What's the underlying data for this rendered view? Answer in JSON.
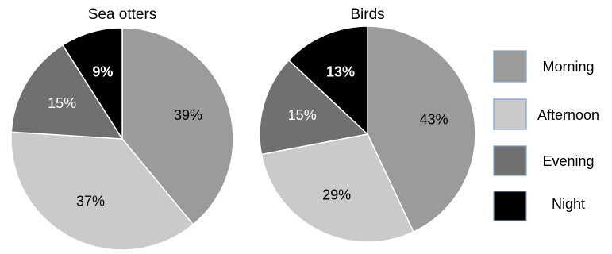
{
  "chart_data": [
    {
      "type": "pie",
      "title": "Sea otters",
      "categories": [
        "Morning",
        "Afternoon",
        "Evening",
        "Night"
      ],
      "values": [
        39,
        37,
        15,
        9
      ],
      "labels": [
        "39%",
        "37%",
        "15%",
        "9%"
      ]
    },
    {
      "type": "pie",
      "title": "Birds",
      "categories": [
        "Morning",
        "Afternoon",
        "Evening",
        "Night"
      ],
      "values": [
        43,
        29,
        15,
        13
      ],
      "labels": [
        "43%",
        "29%",
        "15%",
        "13%"
      ]
    }
  ],
  "legend": {
    "placement": "right",
    "items": [
      {
        "label": "Morning",
        "color": "#9b9b9b"
      },
      {
        "label": "Afternoon",
        "color": "#cacaca"
      },
      {
        "label": "Evening",
        "color": "#707070"
      },
      {
        "label": "Night",
        "color": "#000000"
      }
    ]
  },
  "colors": {
    "Morning": "#9b9b9b",
    "Afternoon": "#cacaca",
    "Evening": "#707070",
    "Night": "#000000",
    "slice_border": "#ffffff",
    "legend_border": "#7f9fbf"
  }
}
